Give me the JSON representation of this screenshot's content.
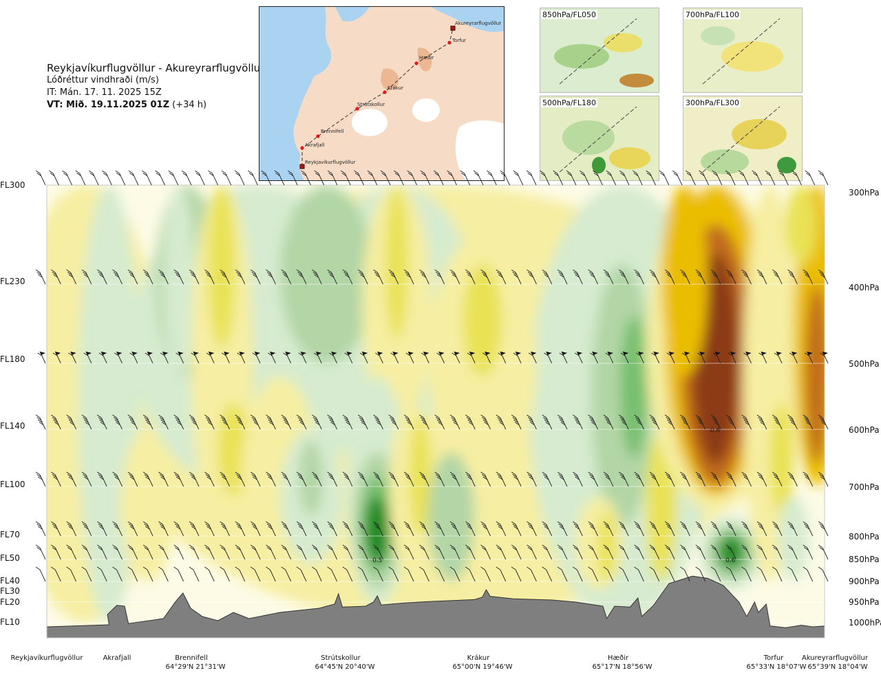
{
  "header": {
    "title": "Reykjavíkurflugvöllur - Akureyrarflugvöllur",
    "subtitle": "Lóðréttur vindhraði (m/s)",
    "issue_time": "IT: Mán. 17. 11. 2025 15Z",
    "valid_time_bold": "VT: Mið. 19.11.2025 01Z",
    "valid_time_offset": "(+34 h)"
  },
  "thumbnails": [
    {
      "label": "850hPa/FL050"
    },
    {
      "label": "700hPa/FL100"
    },
    {
      "label": "500hPa/FL180"
    },
    {
      "label": "300hPa/FL300"
    }
  ],
  "map": {
    "points": [
      {
        "name": "Akureyrarflugvöllur"
      },
      {
        "name": "Torfur"
      },
      {
        "name": "Hæðir"
      },
      {
        "name": "Krákur"
      },
      {
        "name": "Strútskollur"
      },
      {
        "name": "Brennifell"
      },
      {
        "name": "Akrafjall"
      },
      {
        "name": "Reykjavíkurflugvöllur"
      }
    ]
  },
  "chart_data": {
    "type": "heatmap",
    "title": "Lóðréttur vindhraði (m/s)",
    "flight_levels": [
      {
        "fl": "FL300",
        "hpa": "300hPa"
      },
      {
        "fl": "FL230",
        "hpa": "400hPa"
      },
      {
        "fl": "FL180",
        "hpa": "500hPa"
      },
      {
        "fl": "FL140",
        "hpa": "600hPa"
      },
      {
        "fl": "FL100",
        "hpa": "700hPa"
      },
      {
        "fl": "FL70",
        "hpa": "800hPa"
      },
      {
        "fl": "FL50",
        "hpa": "850hPa"
      },
      {
        "fl": "FL40",
        "hpa": "900hPa"
      },
      {
        "fl": "FL30",
        "hpa": ""
      },
      {
        "fl": "FL20",
        "hpa": "950hPa"
      },
      {
        "fl": "FL10",
        "hpa": "1000hPa"
      }
    ],
    "waypoints": [
      {
        "name": "Reykjavíkurflugvöllur",
        "coord": ""
      },
      {
        "name": "Akrafjall",
        "coord": ""
      },
      {
        "name": "Brennifell",
        "coord": "64°29'N 21°31'W"
      },
      {
        "name": "Strútskollur",
        "coord": "64°45'N 20°40'W"
      },
      {
        "name": "Krákur",
        "coord": "65°00'N 19°46'W"
      },
      {
        "name": "Hæðir",
        "coord": "65°17'N 18°56'W"
      },
      {
        "name": "Torfur",
        "coord": "65°33'N 18°07'W"
      },
      {
        "name": "Akureyrarflugvöllur",
        "coord": "65°39'N 18°04'W"
      }
    ],
    "annotations": [
      {
        "text": "0.5",
        "hpa": 850,
        "along": 0.425
      },
      {
        "text": "-0.6",
        "hpa": 600,
        "along": 0.858
      },
      {
        "text": "0.6",
        "hpa": 850,
        "along": 0.879
      }
    ],
    "color_scale": {
      "strong_down": "#8b3a12",
      "mod_down": "#c06a1c",
      "weak_down": "#ebbd00",
      "slight_down": "#e9e255",
      "very_slight_down": "#f6eea2",
      "neutral": "#fdfbe6",
      "slight_up": "#d6ebcf",
      "weak_up": "#b2d6a6",
      "mod_up": "#77bf70",
      "strong_up": "#1c8a22"
    },
    "terrain_color": "#7f7f7f"
  }
}
